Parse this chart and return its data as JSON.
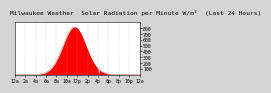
{
  "title": "Milwaukee Weather  Solar Radiation per Minute W/m²  (Last 24 Hours)",
  "bg_color": "#d4d4d4",
  "plot_bg_color": "#ffffff",
  "fill_color": "#ff0000",
  "line_color": "#cc0000",
  "grid_color": "#aaaaaa",
  "ylim": [
    0,
    900
  ],
  "yticks": [
    100,
    200,
    300,
    400,
    500,
    600,
    700,
    800
  ],
  "num_points": 288,
  "peak_hour": 11.5,
  "peak_value": 820,
  "sigma": 2.2,
  "title_fontsize": 4.5,
  "tick_fontsize": 3.5,
  "xlim": [
    0,
    24
  ],
  "xtick_hours": [
    0,
    2,
    4,
    6,
    8,
    10,
    12,
    14,
    16,
    18,
    20,
    22,
    24
  ]
}
